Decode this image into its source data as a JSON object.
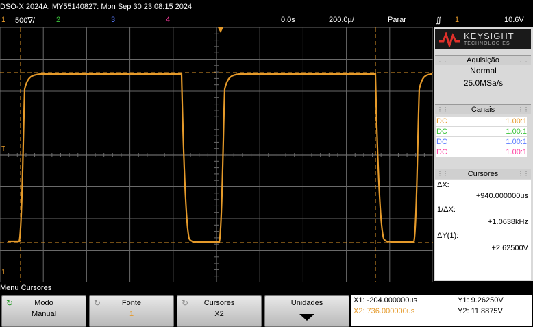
{
  "title_bar": {
    "model": "DSO-X 2024A, MY55140827: Mon Sep 30 23:08:15 2024"
  },
  "status_bar": {
    "ch1_num": "1",
    "ch1_scale": "500∇/",
    "ch2_num": "2",
    "ch3_num": "3",
    "ch4_num": "4",
    "time_pos": "0.0s",
    "time_scale": "200.0µ/",
    "run_state": "Parar",
    "trig_ch": "1",
    "trig_level": "10.6V"
  },
  "colors": {
    "ch1": "#e59a2a",
    "ch2": "#3ac43a",
    "ch3": "#5a7cff",
    "ch4": "#ff3ca0",
    "grid": "#6a6a6a"
  },
  "brand": {
    "name": "KEYSIGHT",
    "sub": "TECHNOLOGIES"
  },
  "acquisition": {
    "header": "Aquisição",
    "mode": "Normal",
    "rate": "25.0MSa/s"
  },
  "channels": {
    "header": "Canais",
    "rows": [
      {
        "coupling": "DC",
        "probe": "1.00:1",
        "color": "#e59a2a"
      },
      {
        "coupling": "DC",
        "probe": "1.00:1",
        "color": "#3ac43a"
      },
      {
        "coupling": "DC",
        "probe": "1.00:1",
        "color": "#5a7cff"
      },
      {
        "coupling": "DC",
        "probe": "1.00:1",
        "color": "#ff3ca0"
      }
    ]
  },
  "cursors_panel": {
    "header": "Cursores",
    "dx_label": "ΔX:",
    "dx_value": "+940.000000us",
    "inv_dx_label": "1/ΔX:",
    "inv_dx_value": "+1.0638kHz",
    "dy_label": "ΔY(1):",
    "dy_value": "+2.62500V"
  },
  "softkeys": {
    "menu_title": "Menu Cursores",
    "mode_label": "Modo",
    "mode_value": "Manual",
    "source_label": "Fonte",
    "source_value": "1",
    "cursors_label": "Cursores",
    "cursors_value": "X2",
    "units_label": "Unidades"
  },
  "cursor_readout": {
    "x1": "X1: -204.000000us",
    "x2": "X2: 736.000000us",
    "y1": "Y1: 9.26250V",
    "y2": "Y2: 11.8875V"
  },
  "markers": {
    "trigger_t": "T",
    "ch1_ground": "1"
  }
}
